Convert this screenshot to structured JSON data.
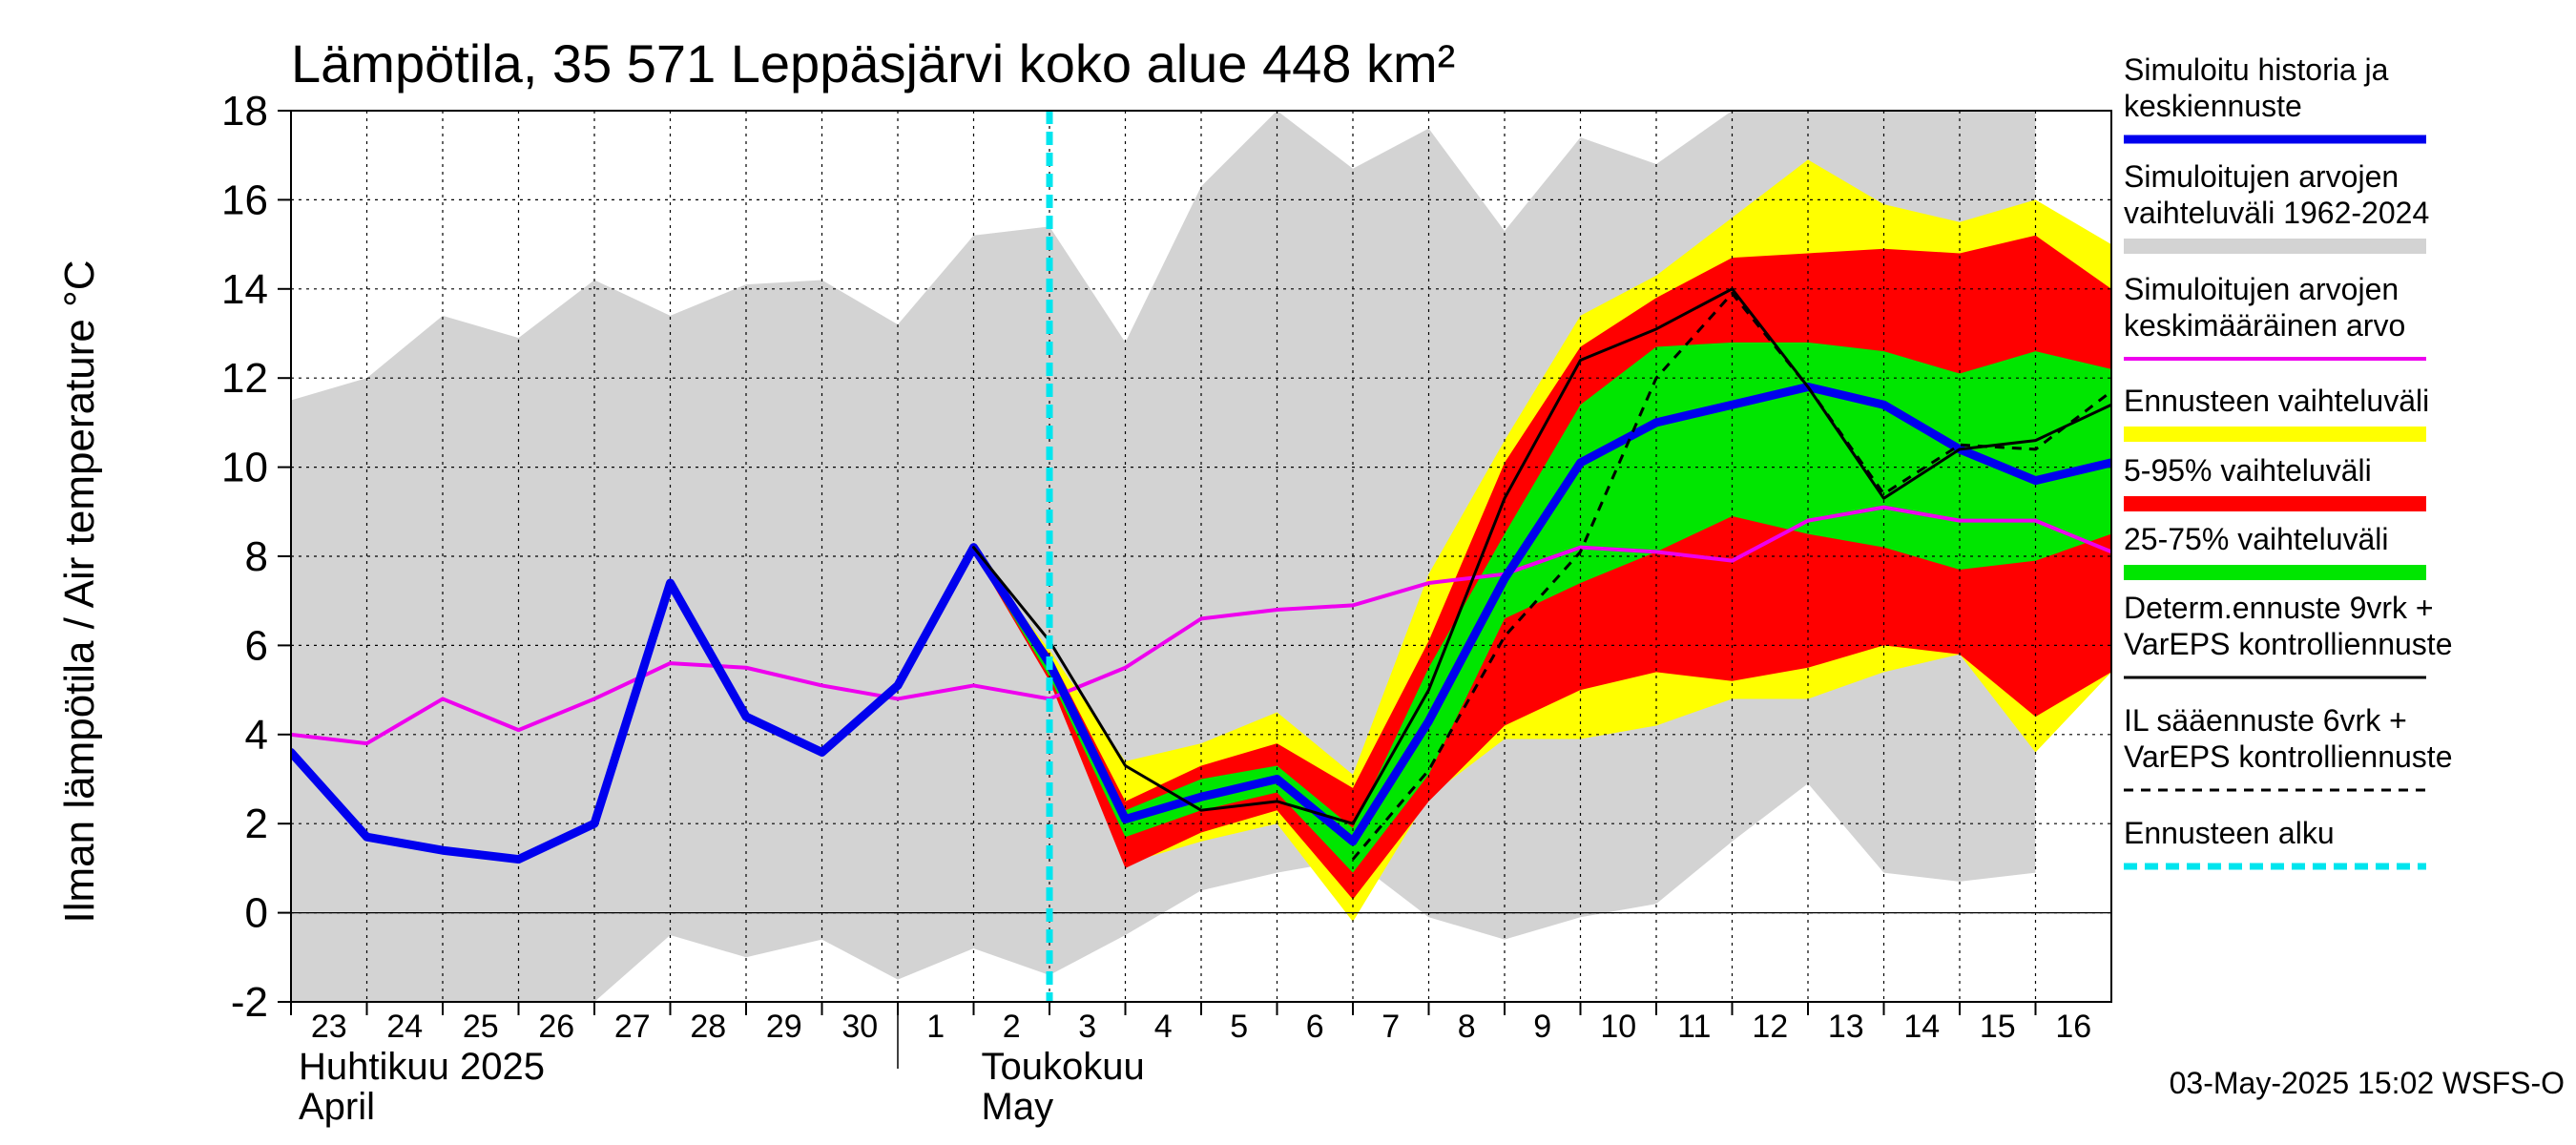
{
  "chart_data": {
    "type": "line",
    "title": "Lämpötila, 35 571 Leppäsjärvi koko alue 448 km²",
    "ylabel": "Ilman lämpötila / Air temperature    °C",
    "ylim": [
      -2,
      18
    ],
    "yticks": [
      -2,
      0,
      2,
      4,
      6,
      8,
      10,
      12,
      14,
      16,
      18
    ],
    "x_start": "2025-04-23",
    "x_end": "2025-05-16",
    "x_tick_labels": [
      "23",
      "24",
      "25",
      "26",
      "27",
      "28",
      "29",
      "30",
      "1",
      "2",
      "3",
      "4",
      "5",
      "6",
      "7",
      "8",
      "9",
      "10",
      "11",
      "12",
      "13",
      "14",
      "15",
      "16"
    ],
    "month_labels": [
      {
        "line1": "Huhtikuu  2025",
        "line2": "April",
        "at": "2025-04-23"
      },
      {
        "line1": "Toukokuu",
        "line2": "May",
        "at": "2025-05-02"
      }
    ],
    "forecast_start": "2025-05-03",
    "grid": true,
    "legend_position": "right",
    "series": [
      {
        "name": "Simuloitujen arvojen vaihteluväli 1962-2024",
        "kind": "band",
        "color": "#d3d3d3",
        "x": [
          "2025-04-23",
          "2025-04-24",
          "2025-04-25",
          "2025-04-26",
          "2025-04-27",
          "2025-04-28",
          "2025-04-29",
          "2025-04-30",
          "2025-05-01",
          "2025-05-02",
          "2025-05-03",
          "2025-05-04",
          "2025-05-05",
          "2025-05-06",
          "2025-05-07",
          "2025-05-08",
          "2025-05-09",
          "2025-05-10",
          "2025-05-11",
          "2025-05-12",
          "2025-05-13",
          "2025-05-14",
          "2025-05-15",
          "2025-05-16"
        ],
        "upper": [
          11.5,
          12.0,
          13.4,
          12.9,
          14.2,
          13.4,
          14.1,
          14.2,
          13.2,
          15.2,
          15.4,
          12.8,
          16.3,
          18.0,
          16.7,
          17.6,
          15.3,
          17.4,
          16.8,
          18.0,
          18.0,
          18.0,
          18.0,
          18.0
        ],
        "lower": [
          -2.0,
          -2.0,
          -2.0,
          -2.0,
          -2.0,
          -0.5,
          -1.0,
          -0.6,
          -1.5,
          -0.8,
          -1.4,
          -0.5,
          0.5,
          0.9,
          1.2,
          -0.1,
          -0.6,
          -0.1,
          0.2,
          1.6,
          2.9,
          0.9,
          0.7,
          0.9
        ]
      },
      {
        "name": "Ennusteen vaihteluväli",
        "kind": "band",
        "color": "#ffff00",
        "x": [
          "2025-05-02",
          "2025-05-03",
          "2025-05-04",
          "2025-05-05",
          "2025-05-06",
          "2025-05-07",
          "2025-05-08",
          "2025-05-09",
          "2025-05-10",
          "2025-05-11",
          "2025-05-12",
          "2025-05-13",
          "2025-05-14",
          "2025-05-15",
          "2025-05-16",
          "2025-05-17"
        ],
        "upper": [
          8.1,
          5.9,
          3.4,
          3.8,
          4.5,
          3.1,
          7.6,
          10.6,
          13.4,
          14.3,
          15.6,
          16.9,
          15.9,
          15.5,
          16.0,
          15.0
        ],
        "lower": [
          8.1,
          5.3,
          1.1,
          1.6,
          2.0,
          -0.2,
          2.6,
          3.9,
          3.9,
          4.2,
          4.8,
          4.8,
          5.4,
          5.8,
          3.6,
          5.4
        ]
      },
      {
        "name": "5-95% vaihteluväli",
        "kind": "band",
        "color": "#ff0000",
        "x": [
          "2025-05-02",
          "2025-05-03",
          "2025-05-04",
          "2025-05-05",
          "2025-05-06",
          "2025-05-07",
          "2025-05-08",
          "2025-05-09",
          "2025-05-10",
          "2025-05-11",
          "2025-05-12",
          "2025-05-13",
          "2025-05-14",
          "2025-05-15",
          "2025-05-16",
          "2025-05-17"
        ],
        "upper": [
          8.1,
          5.8,
          2.5,
          3.3,
          3.8,
          2.8,
          6.1,
          10.1,
          12.7,
          13.8,
          14.7,
          14.8,
          14.9,
          14.8,
          15.2,
          14.0
        ],
        "lower": [
          8.1,
          5.2,
          1.0,
          1.8,
          2.3,
          0.3,
          2.5,
          4.2,
          5.0,
          5.4,
          5.2,
          5.5,
          6.0,
          5.8,
          4.4,
          5.4
        ]
      },
      {
        "name": "25-75% vaihteluväli",
        "kind": "band",
        "color": "#00e600",
        "x": [
          "2025-05-02",
          "2025-05-03",
          "2025-05-04",
          "2025-05-05",
          "2025-05-06",
          "2025-05-07",
          "2025-05-08",
          "2025-05-09",
          "2025-05-10",
          "2025-05-11",
          "2025-05-12",
          "2025-05-13",
          "2025-05-14",
          "2025-05-15",
          "2025-05-16",
          "2025-05-17"
        ],
        "upper": [
          8.1,
          5.6,
          2.3,
          3.0,
          3.3,
          1.9,
          5.5,
          8.5,
          11.4,
          12.7,
          12.8,
          12.8,
          12.6,
          12.1,
          12.6,
          12.2
        ],
        "lower": [
          8.1,
          5.3,
          1.7,
          2.3,
          2.7,
          0.9,
          3.1,
          6.6,
          7.4,
          8.1,
          8.9,
          8.5,
          8.2,
          7.7,
          7.9,
          8.5
        ]
      },
      {
        "name": "Simuloitujen arvojen keskimääräinen arvo",
        "kind": "line",
        "color": "#ee00ee",
        "width": 4,
        "x": [
          "2025-04-23",
          "2025-04-24",
          "2025-04-25",
          "2025-04-26",
          "2025-04-27",
          "2025-04-28",
          "2025-04-29",
          "2025-04-30",
          "2025-05-01",
          "2025-05-02",
          "2025-05-03",
          "2025-05-04",
          "2025-05-05",
          "2025-05-06",
          "2025-05-07",
          "2025-05-08",
          "2025-05-09",
          "2025-05-10",
          "2025-05-11",
          "2025-05-12",
          "2025-05-13",
          "2025-05-14",
          "2025-05-15",
          "2025-05-16",
          "2025-05-17"
        ],
        "y": [
          4.0,
          3.8,
          4.8,
          4.1,
          4.8,
          5.6,
          5.5,
          5.1,
          4.8,
          5.1,
          4.8,
          5.5,
          6.6,
          6.8,
          6.9,
          7.4,
          7.6,
          8.2,
          8.1,
          7.9,
          8.8,
          9.1,
          8.8,
          8.8,
          8.1
        ]
      },
      {
        "name": "Simuloitu historia ja keskiennuste",
        "kind": "line",
        "color": "#0000ee",
        "width": 9,
        "x": [
          "2025-04-23",
          "2025-04-24",
          "2025-04-25",
          "2025-04-26",
          "2025-04-27",
          "2025-04-28",
          "2025-04-29",
          "2025-04-30",
          "2025-05-01",
          "2025-05-02",
          "2025-05-03",
          "2025-05-04",
          "2025-05-05",
          "2025-05-06",
          "2025-05-07",
          "2025-05-08",
          "2025-05-09",
          "2025-05-10",
          "2025-05-11",
          "2025-05-12",
          "2025-05-13",
          "2025-05-14",
          "2025-05-15",
          "2025-05-16",
          "2025-05-17"
        ],
        "y": [
          3.6,
          1.7,
          1.4,
          1.2,
          2.0,
          7.4,
          4.4,
          3.6,
          5.1,
          8.2,
          5.6,
          2.1,
          2.6,
          3.0,
          1.6,
          4.3,
          7.5,
          10.1,
          11.0,
          11.4,
          11.8,
          11.4,
          10.4,
          9.7,
          10.1
        ]
      },
      {
        "name": "Determ.ennuste 9vrk + VarEPS kontrolliennuste",
        "kind": "line",
        "color": "#000000",
        "width": 3,
        "x": [
          "2025-05-02",
          "2025-05-03",
          "2025-05-04",
          "2025-05-05",
          "2025-05-06",
          "2025-05-07",
          "2025-05-08",
          "2025-05-09",
          "2025-05-10",
          "2025-05-11",
          "2025-05-12",
          "2025-05-13",
          "2025-05-14",
          "2025-05-15",
          "2025-05-16",
          "2025-05-17"
        ],
        "y": [
          8.2,
          6.1,
          3.3,
          2.3,
          2.5,
          2.0,
          5.0,
          9.3,
          12.4,
          13.1,
          14.0,
          11.8,
          9.3,
          10.4,
          10.6,
          11.4
        ]
      },
      {
        "name": "IL sääennuste 6vrk + VarEPS kontrolliennuste",
        "kind": "line",
        "color": "#000000",
        "width": 3,
        "dash": "10,8",
        "x": [
          "2025-05-07",
          "2025-05-08",
          "2025-05-09",
          "2025-05-10",
          "2025-05-11",
          "2025-05-12",
          "2025-05-13",
          "2025-05-14",
          "2025-05-15",
          "2025-05-16",
          "2025-05-17"
        ],
        "y": [
          1.2,
          3.2,
          6.2,
          8.1,
          12.0,
          13.9,
          11.8,
          9.4,
          10.5,
          10.4,
          11.7
        ]
      },
      {
        "name": "Ennusteen alku",
        "kind": "vline",
        "color": "#00e5ee",
        "width": 7,
        "dash": "14,8"
      }
    ]
  },
  "legend": [
    {
      "key": "hist",
      "lines": [
        "Simuloitu historia ja",
        "keskiennuste"
      ],
      "color": "#0000ee",
      "sw": "lw",
      "thick": 9
    },
    {
      "key": "range",
      "lines": [
        "Simuloitujen arvojen",
        "vaihteluväli 1962-2024"
      ],
      "color": "#d3d3d3",
      "sw": "bar",
      "thick": 16
    },
    {
      "key": "mean",
      "lines": [
        "Simuloitujen arvojen",
        "keskimääräinen arvo"
      ],
      "color": "#ee00ee",
      "sw": "lw",
      "thick": 4
    },
    {
      "key": "fc",
      "lines": [
        "Ennusteen vaihteluväli"
      ],
      "color": "#ffff00",
      "sw": "bar",
      "thick": 16
    },
    {
      "key": "p95",
      "lines": [
        "5-95% vaihteluväli"
      ],
      "color": "#ff0000",
      "sw": "bar",
      "thick": 16
    },
    {
      "key": "p75",
      "lines": [
        "25-75% vaihteluväli"
      ],
      "color": "#00e600",
      "sw": "bar",
      "thick": 16
    },
    {
      "key": "determ",
      "lines": [
        "Determ.ennuste 9vrk +",
        "VarEPS kontrolliennuste"
      ],
      "color": "#000000",
      "sw": "lw",
      "thick": 3
    },
    {
      "key": "il",
      "lines": [
        "IL sääennuste 6vrk  +",
        "  VarEPS kontrolliennuste"
      ],
      "color": "#000000",
      "sw": "dash",
      "thick": 3
    },
    {
      "key": "start",
      "lines": [
        "Ennusteen alku"
      ],
      "color": "#00e5ee",
      "sw": "dash2",
      "thick": 7
    }
  ],
  "footer": "03-May-2025 15:02 WSFS-O"
}
